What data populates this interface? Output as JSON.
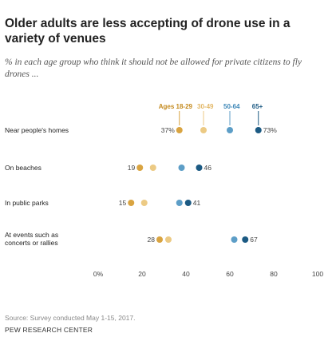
{
  "title": "Older adults are less accepting of drone use in a variety of venues",
  "subtitle": "% in each age group who think it should not be allowed for private citizens to fly drones ...",
  "source": "Source: Survey conducted May 1-15, 2017.",
  "brand": "PEW RESEARCH CENTER",
  "chart_data": {
    "type": "dot",
    "title": "",
    "xlabel": "",
    "ylabel": "",
    "xlim": [
      0,
      100
    ],
    "x_ticks": [
      "0%",
      "20",
      "40",
      "60",
      "80",
      "100"
    ],
    "categories": [
      "Near people's homes",
      "On beaches",
      "In public parks",
      "At events such as concerts or rallies"
    ],
    "category_lines": [
      [
        "Near people's homes"
      ],
      [
        "On beaches"
      ],
      [
        "In public parks"
      ],
      [
        "At events such as",
        "concerts or rallies"
      ]
    ],
    "legend_position": "top",
    "series": [
      {
        "name": "Ages 18-29",
        "color": "#d9a441",
        "values": [
          37,
          19,
          15,
          28
        ],
        "labeled": [
          true,
          true,
          true,
          true
        ]
      },
      {
        "name": "30-49",
        "color": "#ecca84",
        "values": [
          48,
          25,
          21,
          32
        ],
        "labeled": [
          false,
          false,
          false,
          false
        ]
      },
      {
        "name": "50-64",
        "color": "#5d9ec7",
        "values": [
          60,
          38,
          37,
          62
        ],
        "labeled": [
          false,
          false,
          false,
          false
        ]
      },
      {
        "name": "65+",
        "color": "#1c5a83",
        "values": [
          73,
          46,
          41,
          67
        ],
        "labeled": [
          true,
          true,
          true,
          true
        ]
      }
    ],
    "value_labels": [
      [
        "37%",
        "",
        "",
        "73%"
      ],
      [
        "19",
        "",
        "",
        "46"
      ],
      [
        "15",
        "",
        "",
        "41"
      ],
      [
        "28",
        "",
        "",
        "67"
      ]
    ]
  }
}
